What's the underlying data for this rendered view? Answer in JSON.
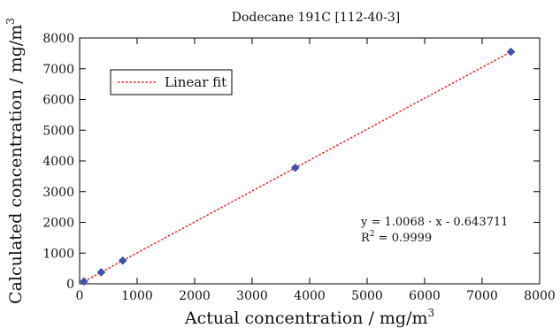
{
  "chart_data": {
    "type": "scatter",
    "title": "Dodecane 191C [112-40-3]",
    "xlabel": "Actual concentration / mg/m",
    "xlabel_sup": "3",
    "ylabel": "Calculated concentration / mg/m",
    "ylabel_sup": "3",
    "xlim": [
      0,
      8000
    ],
    "ylim": [
      0,
      8000
    ],
    "xticks": [
      0,
      1000,
      2000,
      3000,
      4000,
      5000,
      6000,
      7000,
      8000
    ],
    "yticks": [
      0,
      1000,
      2000,
      3000,
      4000,
      5000,
      6000,
      7000,
      8000
    ],
    "grid": false,
    "legend_position": "top-left",
    "series": [
      {
        "kind": "points",
        "x": [
          75,
          375,
          750,
          3750,
          7500
        ],
        "y": [
          75,
          375,
          755,
          3775,
          7550
        ],
        "color": "#3f51b5"
      },
      {
        "kind": "fit-line",
        "name": "Linear fit",
        "slope": 1.0068,
        "intercept": -0.643711,
        "color": "#e8251a"
      }
    ],
    "annotation": {
      "equation": "y = 1.0068 · x - 0.643711",
      "r2_prefix": "R",
      "r2_sup": "2",
      "r2_value": " = 0.9999",
      "at": [
        5000,
        1900
      ]
    }
  }
}
